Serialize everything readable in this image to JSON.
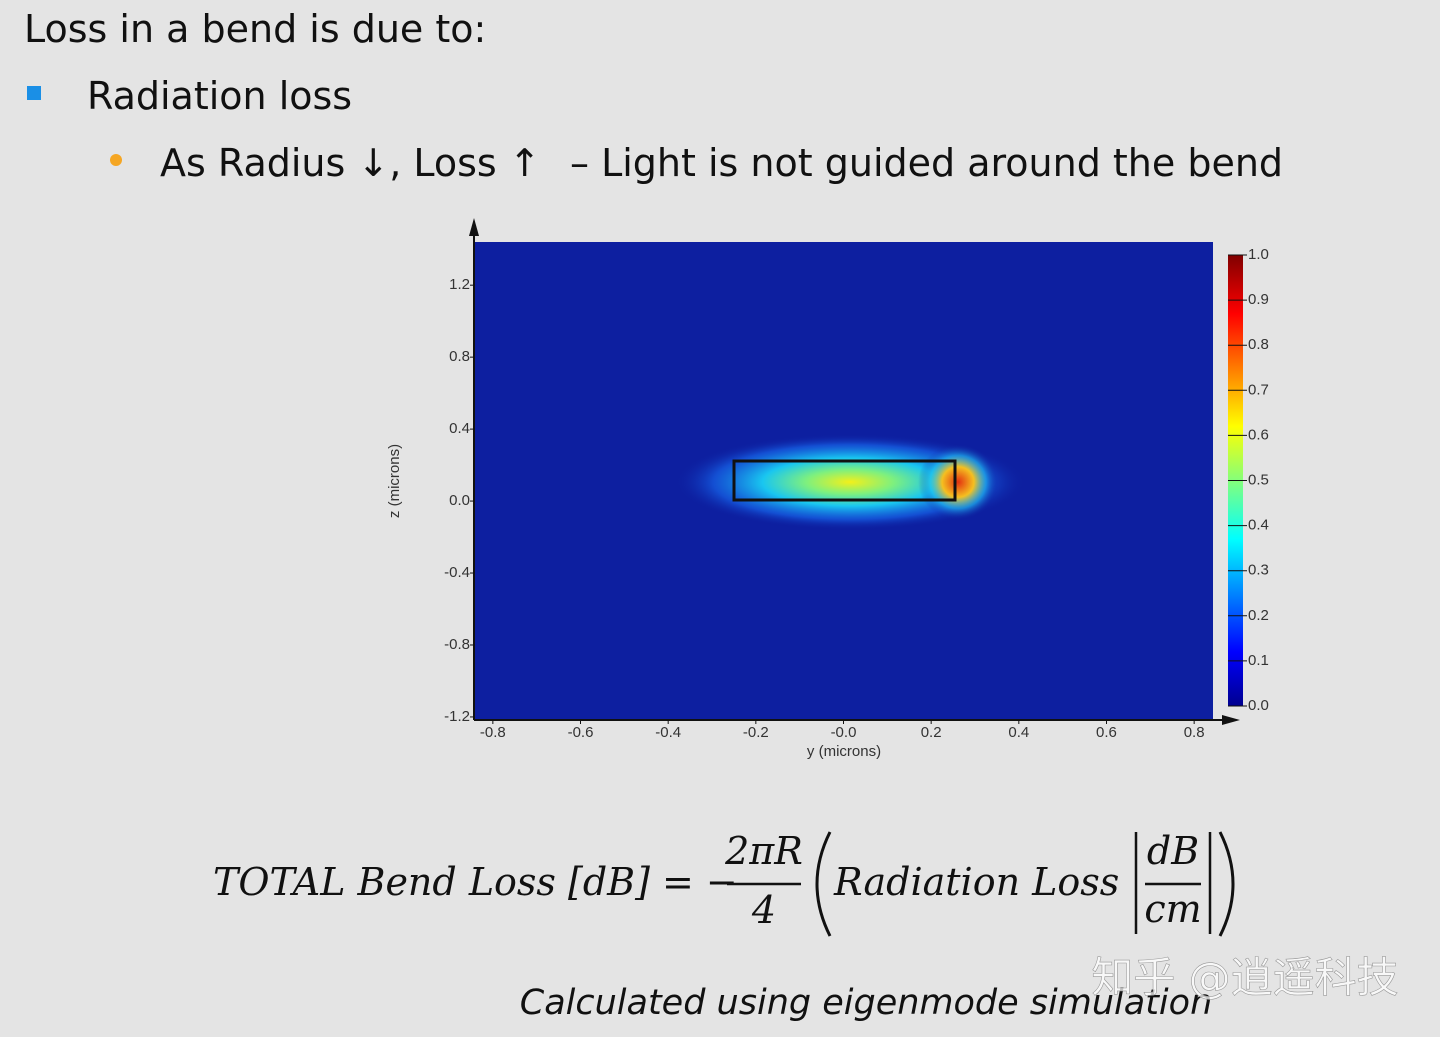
{
  "heading": "Loss in a bend is due to:",
  "bullet": "Radiation loss",
  "sub_bullet": {
    "text": "As Radius ↓, Loss ↑",
    "note": "–  Light is not guided around the bend"
  },
  "chart_data": {
    "type": "heatmap",
    "xlabel": "y (microns)",
    "ylabel": "z (microns)",
    "xlim": [
      -0.843,
      0.843
    ],
    "ylim": [
      -1.217,
      1.44
    ],
    "xticks": [
      -0.8,
      -0.6,
      -0.4,
      -0.2,
      {
        "value": 0,
        "label": "-0.0"
      },
      0.2,
      0.4,
      0.6,
      0.8
    ],
    "yticks": [
      -1.2,
      -0.8,
      -0.4,
      {
        "value": 0,
        "label": "0.0"
      },
      0.4,
      0.8,
      1.2
    ],
    "clim": [
      0,
      1
    ],
    "cticks": [
      {
        "value": 0,
        "label": "0.0"
      },
      0.1,
      0.2,
      0.3,
      0.4,
      0.5,
      0.6,
      0.7,
      0.8,
      0.9,
      {
        "value": 1,
        "label": "1.0"
      }
    ]
  },
  "formula": {
    "lhs": "TOTAL Bend Loss [dB] = −",
    "num1": "2πR",
    "den1": "4",
    "term": "Radiation Loss",
    "num2": "dB",
    "den2": "cm"
  },
  "caption": "Calculated using eigenmode simulation",
  "watermark": "知乎 @逍遥科技"
}
